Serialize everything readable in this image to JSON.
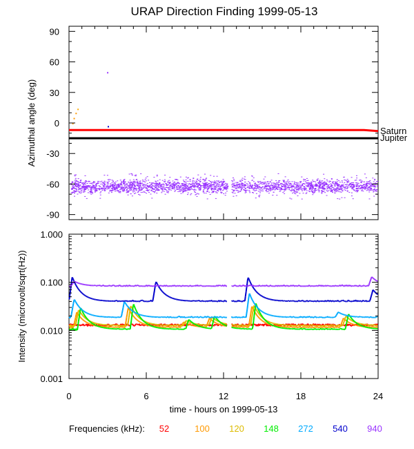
{
  "chart_data": [
    {
      "type": "scatter",
      "panel": "top",
      "title": "URAP Direction Finding  1999-05-13",
      "ylabel": "Azimuthal angle (deg)",
      "xlim": [
        0,
        24
      ],
      "ylim": [
        -95,
        95
      ],
      "yticks": [
        90,
        60,
        30,
        0,
        -30,
        -60,
        -90
      ],
      "ytick_labels": [
        "90",
        "60",
        "30",
        "0",
        "-30",
        "-60",
        "-90"
      ],
      "reference_lines": [
        {
          "name": "Saturn",
          "color": "#ff0000",
          "x": [
            0,
            22.9,
            24
          ],
          "y": [
            -7,
            -7,
            -8
          ]
        },
        {
          "name": "Jupiter",
          "color": "#000000",
          "x": [
            0,
            24
          ],
          "y": [
            -15,
            -15
          ]
        }
      ],
      "scatter_cluster": {
        "color": "#9933ff",
        "center": -62,
        "spread": 8,
        "x_range": [
          0.1,
          23.9
        ],
        "gaps": [
          [
            12.3,
            12.6
          ]
        ]
      },
      "scatter_outliers": [
        {
          "color": "#9933ff",
          "x": 2.95,
          "y": 50
        },
        {
          "color": "#ff9900",
          "x": 0.35,
          "y": 5
        },
        {
          "color": "#ff9900",
          "x": 0.5,
          "y": 10
        },
        {
          "color": "#ffaa00",
          "x": 0.65,
          "y": 14
        },
        {
          "color": "#ff9900",
          "x": 0.25,
          "y": 0
        },
        {
          "color": "#0000cc",
          "x": 3.0,
          "y": -3
        }
      ]
    },
    {
      "type": "line",
      "panel": "bottom",
      "ylabel": "Intensity (microvolt/sqrt(Hz))",
      "xlabel": "time - hours on 1999-05-13",
      "xlim": [
        0,
        24
      ],
      "ylim": [
        0.001,
        1.0
      ],
      "yscale": "log",
      "xticks": [
        0,
        6,
        12,
        18,
        24
      ],
      "xtick_labels": [
        "0",
        "6",
        "12",
        "18",
        "24"
      ],
      "yticks": [
        1.0,
        0.1,
        0.01,
        0.001
      ],
      "ytick_labels": [
        "1.000",
        "0.100",
        "0.010",
        "0.001"
      ],
      "legend_title": "Frequencies (kHz):",
      "series": [
        {
          "name": "52",
          "color": "#ff0000",
          "base": 0.013,
          "bursts": []
        },
        {
          "name": "100",
          "color": "#ff9900",
          "base": 0.0115,
          "bursts": [
            [
              0.6,
              0.024
            ],
            [
              4.6,
              0.03
            ],
            [
              8.9,
              0.015
            ],
            [
              10.9,
              0.018
            ],
            [
              14.2,
              0.032
            ],
            [
              21.3,
              0.018
            ]
          ]
        },
        {
          "name": "120",
          "color": "#ddbb00",
          "base": 0.0125,
          "bursts": [
            [
              0.75,
              0.027
            ],
            [
              4.8,
              0.033
            ],
            [
              9.1,
              0.016
            ],
            [
              11.1,
              0.019
            ],
            [
              14.35,
              0.034
            ],
            [
              21.5,
              0.02
            ]
          ]
        },
        {
          "name": "148",
          "color": "#00ee00",
          "base": 0.0105,
          "bursts": [
            [
              0.9,
              0.03
            ],
            [
              5.0,
              0.036
            ],
            [
              9.3,
              0.017
            ],
            [
              11.3,
              0.02
            ],
            [
              14.5,
              0.037
            ],
            [
              21.7,
              0.022
            ]
          ]
        },
        {
          "name": "272",
          "color": "#00aaff",
          "base": 0.0185,
          "bursts": [
            [
              0.4,
              0.045
            ],
            [
              4.3,
              0.04
            ],
            [
              14.0,
              0.06
            ],
            [
              20.9,
              0.024
            ]
          ]
        },
        {
          "name": "540",
          "color": "#0000cc",
          "base": 0.04,
          "bursts": [
            [
              0.25,
              0.13
            ],
            [
              6.75,
              0.105
            ],
            [
              13.9,
              0.13
            ],
            [
              23.6,
              0.07
            ]
          ]
        },
        {
          "name": "940",
          "color": "#9933ff",
          "base": 0.083,
          "bursts": [
            [
              0.4,
              0.105
            ],
            [
              23.5,
              0.13
            ]
          ]
        }
      ]
    }
  ]
}
